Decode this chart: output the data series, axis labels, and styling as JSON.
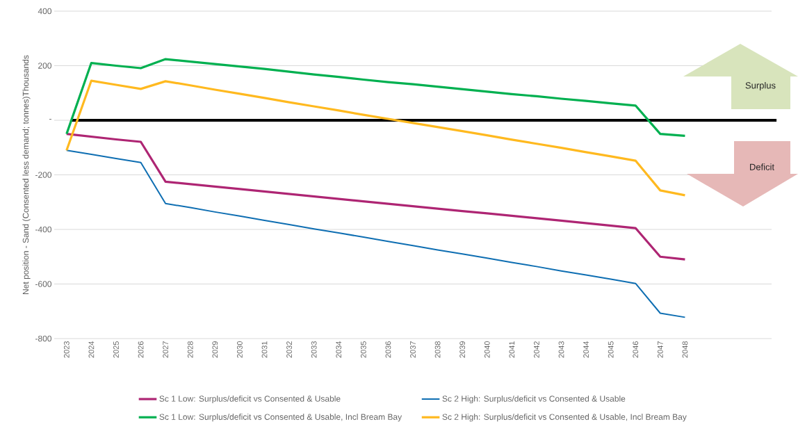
{
  "chart_data": {
    "type": "line",
    "ylabel": "Net position  - Sand (Consented less demand; tonnes)Thousands",
    "categories": [
      "2023",
      "2024",
      "2025",
      "2026",
      "2027",
      "2028",
      "2029",
      "2030",
      "2031",
      "2032",
      "2033",
      "2034",
      "2035",
      "2036",
      "2037",
      "2038",
      "2039",
      "2040",
      "2041",
      "2042",
      "2043",
      "2044",
      "2045",
      "2046",
      "2047",
      "2048",
      null,
      null,
      null
    ],
    "series": [
      {
        "name": "Sc 1 Low:  Surplus/deficit vs Consented & Usable",
        "color": "#ae2573",
        "values": [
          -50,
          -60,
          -70,
          -79,
          -225,
          -234,
          -243,
          -252,
          -261,
          -270,
          -279,
          -288,
          -297,
          -306,
          -315,
          -324,
          -333,
          -341,
          -350,
          -359,
          -368,
          -377,
          -386,
          -395,
          -500,
          -510,
          null,
          null,
          null
        ]
      },
      {
        "name": "Sc 2 High:  Surplus/deficit vs Consented & Usable",
        "color": "#0e6eb2",
        "values": [
          -110,
          -125,
          -140,
          -155,
          -305,
          -320,
          -336,
          -351,
          -367,
          -382,
          -398,
          -413,
          -428,
          -444,
          -459,
          -475,
          -490,
          -505,
          -521,
          -536,
          -552,
          -567,
          -582,
          -598,
          -707,
          -722,
          null,
          null,
          null
        ]
      },
      {
        "name": "Sc 1 Low:  Surplus/deficit vs Consented & Usable, Incl Bream Bay",
        "color": "#00b050",
        "values": [
          -50,
          210,
          200,
          191,
          224,
          215,
          206,
          197,
          188,
          178,
          168,
          159,
          149,
          140,
          132,
          123,
          114,
          105,
          96,
          88,
          79,
          71,
          62,
          54,
          -50,
          -57,
          null,
          null,
          null
        ]
      },
      {
        "name": "Sc 2 High:  Surplus/deficit vs Consented & Usable, Incl Bream Bay",
        "color": "#ffb91f",
        "values": [
          -110,
          145,
          130,
          115,
          143,
          128,
          112,
          97,
          82,
          66,
          51,
          36,
          20,
          5,
          -10,
          -25,
          -40,
          -55,
          -71,
          -86,
          -101,
          -117,
          -132,
          -148,
          -257,
          -275,
          null,
          null,
          null
        ]
      }
    ],
    "ylim": [
      -800,
      400
    ],
    "yticks": [
      -800,
      -600,
      -400,
      -200,
      {
        "value": 0,
        "label": "-"
      },
      200,
      400
    ],
    "ref_lines": [
      {
        "axis": "y",
        "value": 0,
        "color": "#000000",
        "line_style": "solid"
      }
    ],
    "annotations": [
      "Surplus",
      "Deficit"
    ],
    "grid": "y",
    "legend": "bottom",
    "marker": "none",
    "line_style": "solid"
  }
}
